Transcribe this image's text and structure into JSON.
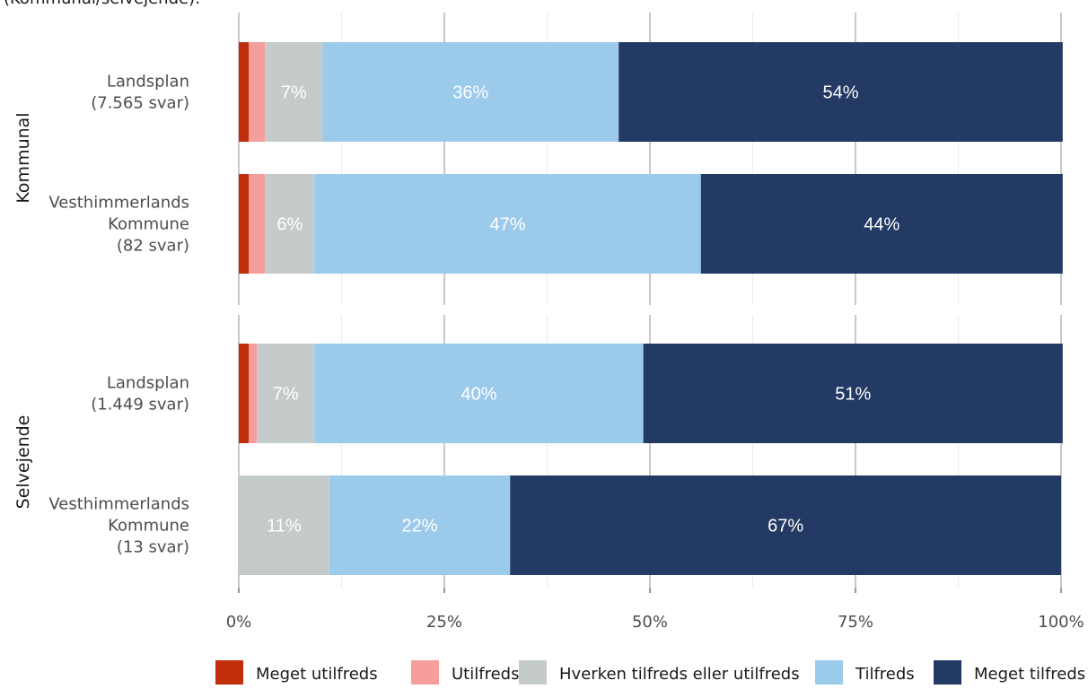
{
  "header_fragment": "(Kommunal/selvejende):",
  "chart_data": {
    "type": "bar",
    "orientation": "horizontal",
    "stacked": true,
    "x_ticks": [
      "0%",
      "25%",
      "50%",
      "75%",
      "100%"
    ],
    "xlim": [
      0,
      100
    ],
    "grid": true,
    "legend_position": "bottom",
    "series": [
      {
        "name": "Meget utilfreds",
        "color": "#c12e0b"
      },
      {
        "name": "Utilfreds",
        "color": "#f59e9b"
      },
      {
        "name": "Hverken tilfreds eller utilfreds",
        "color": "#c5cbcb"
      },
      {
        "name": "Tilfreds",
        "color": "#9ccaea"
      },
      {
        "name": "Meget tilfreds",
        "color": "#233a64"
      }
    ],
    "panels": [
      {
        "label": "Kommunal",
        "bars": [
          {
            "label": [
              "Landsplan",
              "(7.565 svar)"
            ],
            "values": [
              1.2,
              2.0,
              7,
              36,
              54
            ],
            "labels": [
              "",
              "",
              "7%",
              "36%",
              "54%"
            ]
          },
          {
            "label": [
              "Vesthimmerlands",
              "Kommune",
              "(82 svar)"
            ],
            "values": [
              1.2,
              2.0,
              6,
              47,
              44
            ],
            "labels": [
              "",
              "",
              "6%",
              "47%",
              "44%"
            ]
          }
        ]
      },
      {
        "label": "Selvejende",
        "bars": [
          {
            "label": [
              "Landsplan",
              "(1.449 svar)"
            ],
            "values": [
              1.2,
              1.0,
              7,
              40,
              51
            ],
            "labels": [
              "",
              "",
              "7%",
              "40%",
              "51%"
            ]
          },
          {
            "label": [
              "Vesthimmerlands",
              "Kommune",
              "(13 svar)"
            ],
            "values": [
              0,
              0,
              11,
              22,
              67
            ],
            "labels": [
              "",
              "",
              "11%",
              "22%",
              "67%"
            ]
          }
        ]
      }
    ]
  }
}
